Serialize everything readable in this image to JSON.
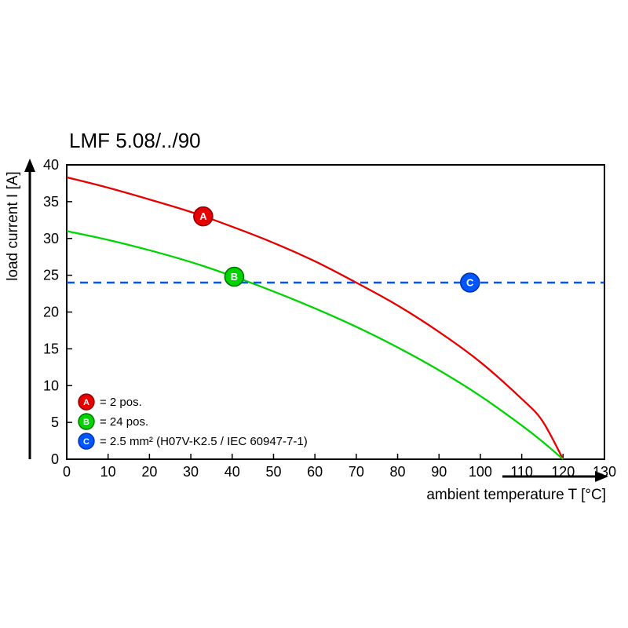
{
  "page": {
    "title": "LMF 5.08/../90"
  },
  "chart_data": {
    "type": "line",
    "title": "LMF 5.08/../90",
    "xlabel": "ambient temperature T [°C]",
    "ylabel": "load current I [A]",
    "xlim": [
      0,
      130
    ],
    "ylim": [
      0,
      40
    ],
    "xtick_step": 10,
    "ytick_step": 5,
    "grid": false,
    "legend_position": "inside-bottom-left",
    "series": [
      {
        "id": "A",
        "legend_label": "= 2 pos.",
        "color": "#e60000",
        "edge_color": "#8f0000",
        "style": "solid",
        "points": [
          [
            0,
            38.3
          ],
          [
            10,
            36.9
          ],
          [
            20,
            35.3
          ],
          [
            30,
            33.6
          ],
          [
            40,
            31.6
          ],
          [
            50,
            29.4
          ],
          [
            60,
            26.9
          ],
          [
            70,
            24.0
          ],
          [
            80,
            20.9
          ],
          [
            90,
            17.3
          ],
          [
            100,
            13.2
          ],
          [
            110,
            8.2
          ],
          [
            115,
            5.2
          ],
          [
            120,
            0
          ]
        ],
        "marker": {
          "x": 33,
          "y": 33.0,
          "label": "A"
        }
      },
      {
        "id": "B",
        "legend_label": "= 24 pos.",
        "color": "#00d400",
        "edge_color": "#007400",
        "style": "solid",
        "points": [
          [
            0,
            31.0
          ],
          [
            10,
            29.8
          ],
          [
            20,
            28.4
          ],
          [
            30,
            26.8
          ],
          [
            40,
            24.9
          ],
          [
            50,
            22.8
          ],
          [
            60,
            20.5
          ],
          [
            70,
            18.0
          ],
          [
            80,
            15.2
          ],
          [
            90,
            12.1
          ],
          [
            100,
            8.6
          ],
          [
            110,
            4.6
          ],
          [
            115,
            2.4
          ],
          [
            120,
            0
          ]
        ],
        "marker": {
          "x": 40.5,
          "y": 24.8,
          "label": "B"
        }
      },
      {
        "id": "C",
        "legend_label": "= 2.5 mm² (H07V-K2.5 / IEC 60947-7-1)",
        "color": "#0055ff",
        "edge_color": "#0033aa",
        "style": "dashed",
        "const_y": 24,
        "marker": {
          "x": 97.5,
          "y": 24,
          "label": "C"
        }
      }
    ]
  }
}
